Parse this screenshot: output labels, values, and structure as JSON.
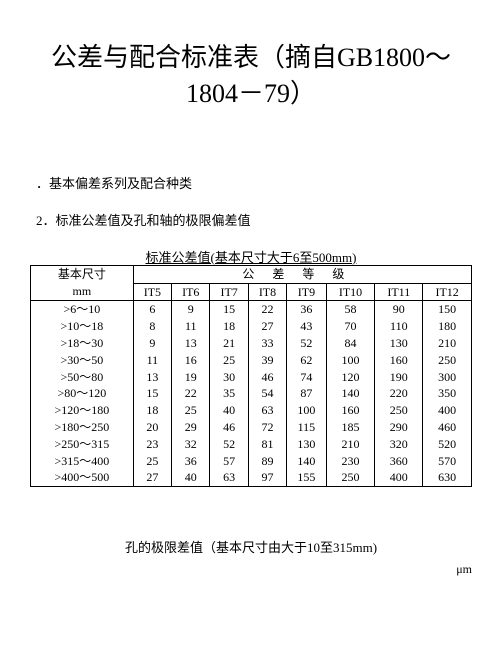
{
  "title_l1": "公差与配合标准表（摘自GB1800～",
  "title_l2": "1804－79）",
  "section1": "．基本偏差系列及配合种类",
  "section2": "2．标准公差值及孔和轴的极限偏差值",
  "table_title": "标准公差值(基本尺寸大于6至500mm)",
  "corner_label": "基本尺寸",
  "corner_unit": "mm",
  "spanner": "公差等级",
  "cols": [
    "IT5",
    "IT6",
    "IT7",
    "IT8",
    "IT9",
    "IT10",
    "IT11",
    "IT12"
  ],
  "rows": [
    {
      "dim": ">6～10",
      "v": [
        "6",
        "9",
        "15",
        "22",
        "36",
        "58",
        "90",
        "150"
      ]
    },
    {
      "dim": ">10～18",
      "v": [
        "8",
        "11",
        "18",
        "27",
        "43",
        "70",
        "110",
        "180"
      ]
    },
    {
      "dim": ">18～30",
      "v": [
        "9",
        "13",
        "21",
        "33",
        "52",
        "84",
        "130",
        "210"
      ]
    },
    {
      "dim": ">30～50",
      "v": [
        "11",
        "16",
        "25",
        "39",
        "62",
        "100",
        "160",
        "250"
      ]
    },
    {
      "dim": ">50～80",
      "v": [
        "13",
        "19",
        "30",
        "46",
        "74",
        "120",
        "190",
        "300"
      ]
    },
    {
      "dim": ">80～120",
      "v": [
        "15",
        "22",
        "35",
        "54",
        "87",
        "140",
        "220",
        "350"
      ]
    },
    {
      "dim": ">120～180",
      "v": [
        "18",
        "25",
        "40",
        "63",
        "100",
        "160",
        "250",
        "400"
      ]
    },
    {
      "dim": ">180～250",
      "v": [
        "20",
        "29",
        "46",
        "72",
        "115",
        "185",
        "290",
        "460"
      ]
    },
    {
      "dim": ">250～315",
      "v": [
        "23",
        "32",
        "52",
        "81",
        "130",
        "210",
        "320",
        "520"
      ]
    },
    {
      "dim": ">315～400",
      "v": [
        "25",
        "36",
        "57",
        "89",
        "140",
        "230",
        "360",
        "570"
      ]
    },
    {
      "dim": ">400～500",
      "v": [
        "27",
        "40",
        "63",
        "97",
        "155",
        "250",
        "400",
        "630"
      ]
    }
  ],
  "sub_title": "孔的极限差值（基本尺寸由大于10至315mm)",
  "unit_text": "μm"
}
